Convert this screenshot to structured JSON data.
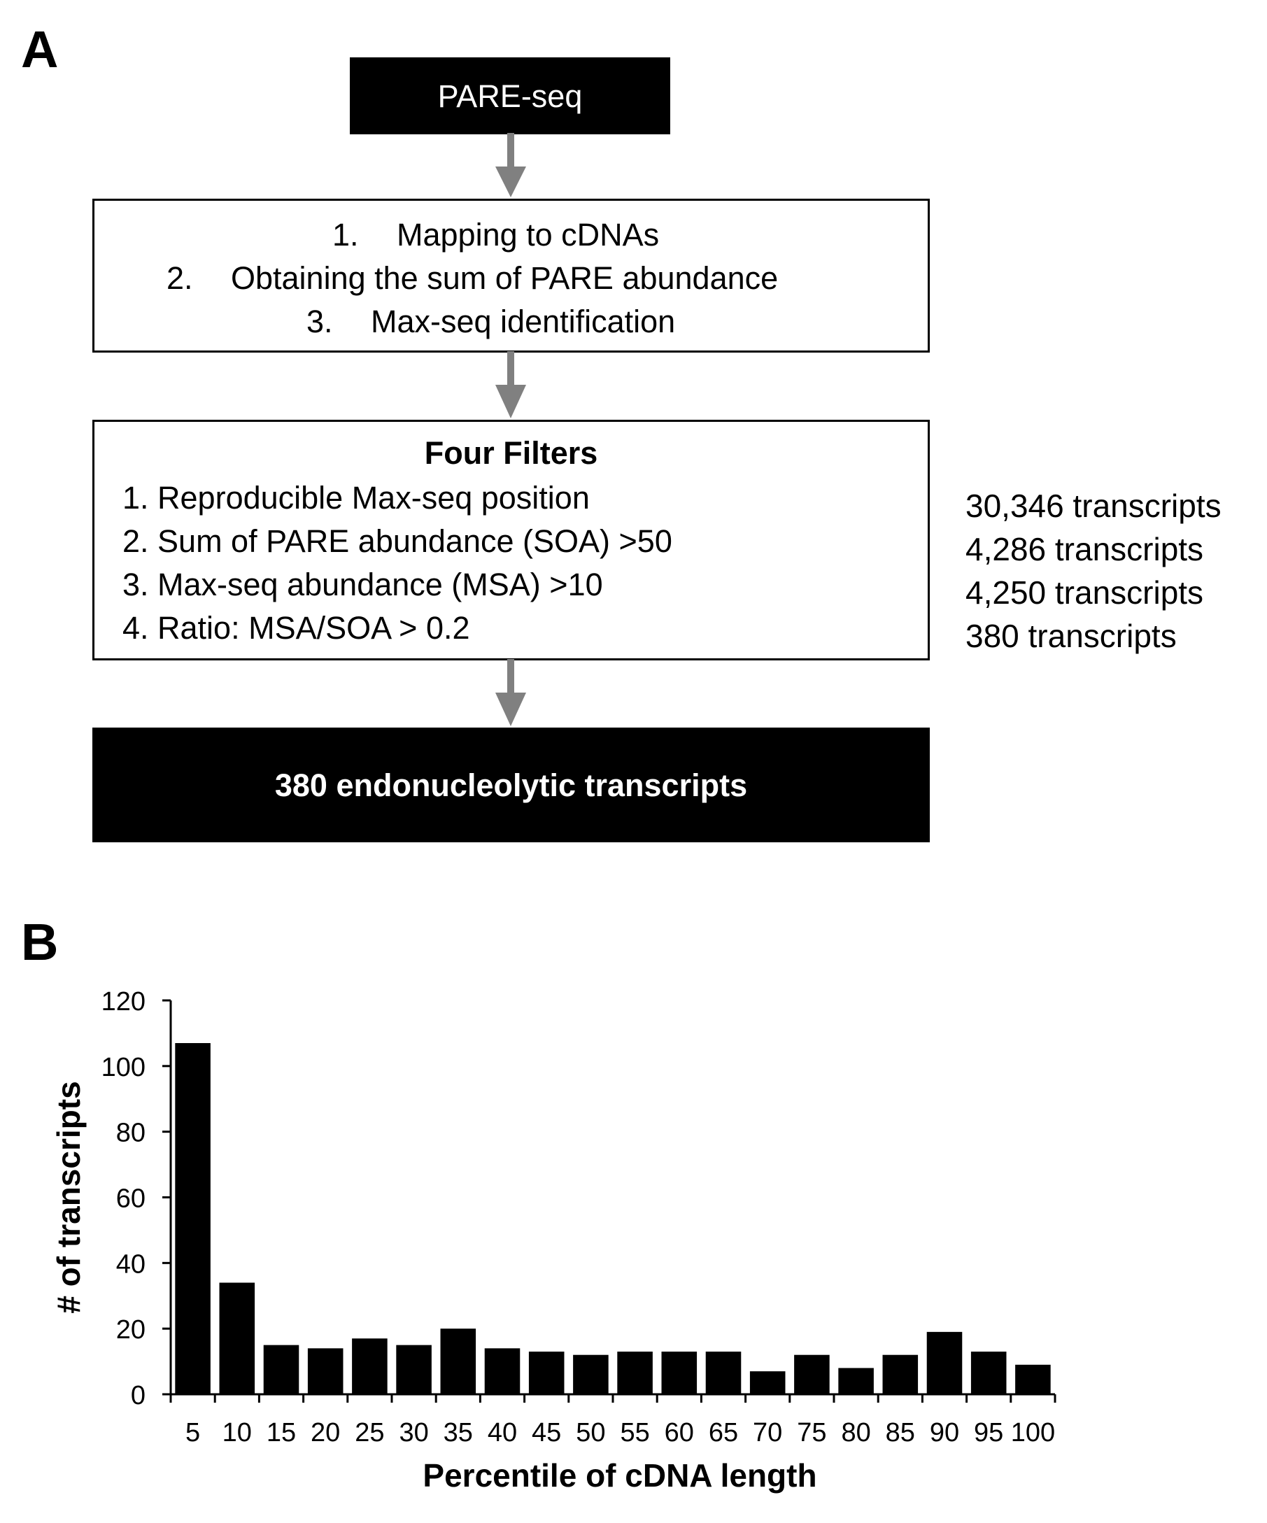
{
  "panel_a": {
    "label": "A",
    "top_box": "PARE-seq",
    "steps": [
      {
        "num": "1.",
        "text": "Mapping to cDNAs"
      },
      {
        "num": "2.",
        "text": "Obtaining the sum of PARE abundance"
      },
      {
        "num": "3.",
        "text": "Max-seq identification"
      }
    ],
    "filters_title": "Four Filters",
    "filters": [
      "1. Reproducible Max-seq position",
      "2. Sum of PARE abundance (SOA) >50",
      "3. Max-seq abundance (MSA) >10",
      "4. Ratio: MSA/SOA > 0.2"
    ],
    "counts": [
      "30,346 transcripts",
      "4,286 transcripts",
      "4,250 transcripts",
      "380 transcripts"
    ],
    "result_box": "380 endonucleolytic transcripts",
    "arrow_color": "#808080"
  },
  "panel_b": {
    "label": "B"
  },
  "chart_data": {
    "type": "bar",
    "xlabel": "Percentile of cDNA length",
    "ylabel": "# of transcripts",
    "categories": [
      "5",
      "10",
      "15",
      "20",
      "25",
      "30",
      "35",
      "40",
      "45",
      "50",
      "55",
      "60",
      "65",
      "70",
      "75",
      "80",
      "85",
      "90",
      "95",
      "100"
    ],
    "values": [
      107,
      34,
      15,
      14,
      17,
      15,
      20,
      14,
      13,
      12,
      13,
      13,
      13,
      7,
      12,
      8,
      12,
      19,
      13,
      9
    ],
    "ylim": [
      0,
      120
    ],
    "yticks": [
      0,
      20,
      40,
      60,
      80,
      100,
      120
    ],
    "grid": false,
    "bar_color": "#000000"
  }
}
